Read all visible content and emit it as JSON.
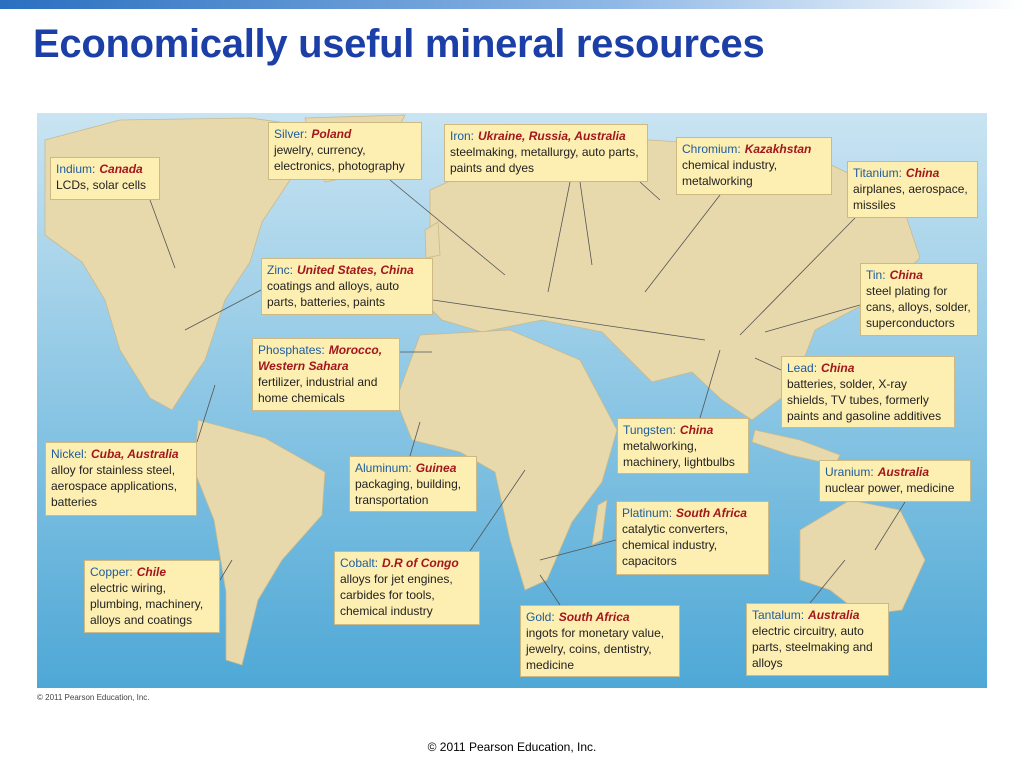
{
  "title": "Economically useful mineral resources",
  "labels": [
    {
      "mineral": "Indium:",
      "countries": "Canada",
      "uses": "LCDs, solar cells"
    },
    {
      "mineral": "Silver:",
      "countries": "Poland",
      "uses": "jewelry, currency, electronics, photography"
    },
    {
      "mineral": "Iron:",
      "countries": "Ukraine, Russia, Australia",
      "uses": "steelmaking, metallurgy, auto parts, paints and dyes"
    },
    {
      "mineral": "Chromium:",
      "countries": "Kazakhstan",
      "uses": "chemical industry, metalworking"
    },
    {
      "mineral": "Titanium:",
      "countries": "China",
      "uses": "airplanes, aerospace, missiles"
    },
    {
      "mineral": "Zinc:",
      "countries": "United States, China",
      "uses": "coatings and alloys, auto parts, batteries, paints"
    },
    {
      "mineral": "Tin:",
      "countries": "China",
      "uses": "steel plating for cans, alloys, solder, superconductors"
    },
    {
      "mineral": "Phosphates:",
      "countries": "Morocco, Western Sahara",
      "uses": "fertilizer, industrial and home chemicals"
    },
    {
      "mineral": "Lead:",
      "countries": "China",
      "uses": "batteries, solder, X-ray shields, TV tubes, formerly paints and gasoline additives"
    },
    {
      "mineral": "Nickel:",
      "countries": "Cuba, Australia",
      "uses": "alloy for stainless steel, aerospace applications, batteries"
    },
    {
      "mineral": "Aluminum:",
      "countries": "Guinea",
      "uses": "packaging, building, transportation"
    },
    {
      "mineral": "Tungsten:",
      "countries": "China",
      "uses": "metalworking, machinery, lightbulbs"
    },
    {
      "mineral": "Uranium:",
      "countries": "Australia",
      "uses": "nuclear power, medicine"
    },
    {
      "mineral": "Platinum:",
      "countries": "South Africa",
      "uses": "catalytic converters, chemical industry, capacitors"
    },
    {
      "mineral": "Cobalt:",
      "countries": "D.R of Congo",
      "uses": "alloys for jet engines, carbides for tools, chemical industry"
    },
    {
      "mineral": "Copper:",
      "countries": "Chile",
      "uses": "electric wiring, plumbing, machinery, alloys and coatings"
    },
    {
      "mineral": "Gold:",
      "countries": "South Africa",
      "uses": "ingots for monetary value, jewelry, coins, dentistry, medicine"
    },
    {
      "mineral": "Tantalum:",
      "countries": "Australia",
      "uses": "electric circuitry, auto parts, steelmaking and alloys"
    }
  ],
  "map_credit": "© 2011 Pearson Education, Inc.",
  "footer": "© 2011 Pearson Education, Inc."
}
